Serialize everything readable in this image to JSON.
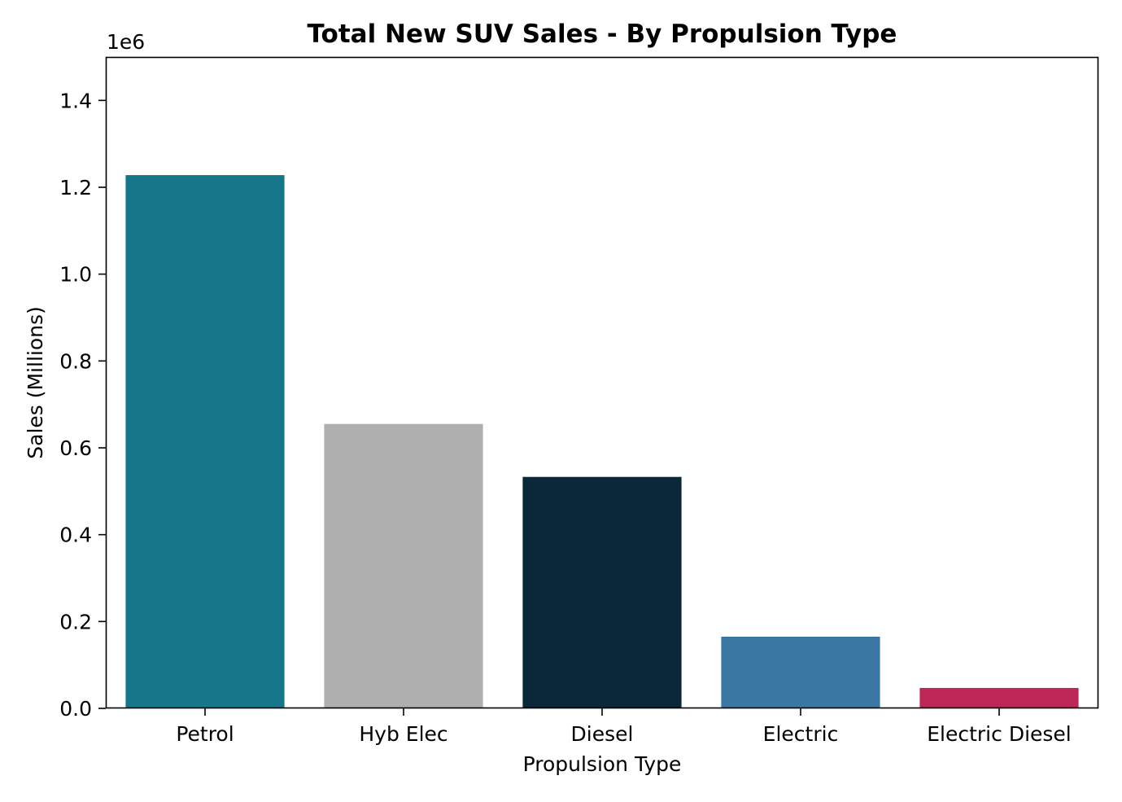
{
  "chart_data": {
    "type": "bar",
    "title": "Total New SUV Sales - By Propulsion Type",
    "xlabel": "Propulsion Type",
    "ylabel": "Sales (Millions)",
    "y_offset_label": "1e6",
    "categories": [
      "Petrol",
      "Hyb Elec",
      "Diesel",
      "Electric",
      "Electric Diesel"
    ],
    "values": [
      1228000,
      655000,
      533000,
      165000,
      47000
    ],
    "colors": [
      "#17778A",
      "#AFAFAF",
      "#0B283B",
      "#3A77A2",
      "#BD2755"
    ],
    "ylim": [
      0,
      1500000
    ],
    "yticks": [
      0,
      200000,
      400000,
      600000,
      800000,
      1000000,
      1200000,
      1400000
    ],
    "ytick_labels": [
      "0.0",
      "0.2",
      "0.4",
      "0.6",
      "0.8",
      "1.0",
      "1.2",
      "1.4"
    ],
    "grid": false,
    "legend": "none"
  }
}
